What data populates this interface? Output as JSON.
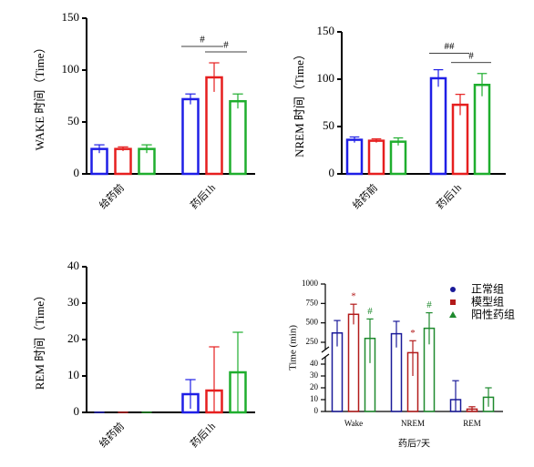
{
  "chart_data": [
    {
      "type": "bar",
      "ylabel": "WAKE 时间（Time）",
      "categories": [
        "给药前",
        "药后1h"
      ],
      "series": [
        {
          "color": "#1f1fe6",
          "values": [
            24,
            72
          ],
          "errors": [
            4,
            5
          ]
        },
        {
          "color": "#e61f1f",
          "values": [
            24,
            93
          ],
          "errors": [
            2,
            14
          ]
        },
        {
          "color": "#1fae2e",
          "values": [
            24,
            70
          ],
          "errors": [
            4,
            7
          ]
        }
      ],
      "ylim": [
        0,
        150
      ],
      "yticks": [
        0,
        50,
        100,
        150
      ],
      "annotations": [
        {
          "text": "#",
          "category": 1,
          "from": 0,
          "to": 1
        },
        {
          "text": "#",
          "category": 1,
          "from": 1,
          "to": 2
        }
      ]
    },
    {
      "type": "bar",
      "ylabel": "NREM 时间（Time）",
      "categories": [
        "给药前",
        "药后1h"
      ],
      "series": [
        {
          "color": "#1f1fe6",
          "values": [
            36,
            101
          ],
          "errors": [
            3,
            9
          ]
        },
        {
          "color": "#e61f1f",
          "values": [
            35,
            73
          ],
          "errors": [
            2,
            11
          ]
        },
        {
          "color": "#1fae2e",
          "values": [
            34,
            94
          ],
          "errors": [
            4,
            12
          ]
        }
      ],
      "ylim": [
        0,
        150
      ],
      "yticks": [
        0,
        50,
        100,
        150
      ],
      "annotations": [
        {
          "text": "##",
          "category": 1,
          "from": 0,
          "to": 1
        },
        {
          "text": "#",
          "category": 1,
          "from": 1,
          "to": 2
        }
      ]
    },
    {
      "type": "bar",
      "ylabel": "REM 时间（Time）",
      "categories": [
        "给药前",
        "药后1h"
      ],
      "series": [
        {
          "color": "#1f1fe6",
          "values": [
            0,
            5
          ],
          "errors": [
            0,
            4
          ]
        },
        {
          "color": "#e61f1f",
          "values": [
            0,
            6
          ],
          "errors": [
            0,
            12
          ]
        },
        {
          "color": "#1fae2e",
          "values": [
            0,
            11
          ],
          "errors": [
            0,
            11
          ]
        }
      ],
      "ylim": [
        0,
        40
      ],
      "yticks": [
        0,
        10,
        20,
        30,
        40
      ]
    },
    {
      "type": "bar",
      "ylabel": "Time (min)",
      "xlabel": "药后7天",
      "categories": [
        "Wake",
        "NREM",
        "REM"
      ],
      "series": [
        {
          "name": "正常组",
          "color": "#1a1a99",
          "values": [
            370,
            360,
            10
          ],
          "errors": [
            160,
            160,
            16
          ]
        },
        {
          "name": "模型组",
          "color": "#b31a1a",
          "values": [
            610,
            150,
            2
          ],
          "errors": [
            130,
            120,
            2
          ]
        },
        {
          "name": "阳性药组",
          "color": "#1f8a2e",
          "values": [
            300,
            430,
            12
          ],
          "errors": [
            250,
            200,
            8
          ]
        }
      ],
      "ylim": [
        0,
        1000
      ],
      "axis_break": [
        40,
        250
      ],
      "yticks": [
        0,
        10,
        20,
        30,
        40,
        250,
        500,
        750,
        1000
      ],
      "marks": [
        {
          "text": "*",
          "series": 1,
          "category": 0
        },
        {
          "text": "#",
          "series": 2,
          "category": 0
        },
        {
          "text": "*",
          "series": 1,
          "category": 1
        },
        {
          "text": "#",
          "series": 2,
          "category": 1
        }
      ]
    }
  ]
}
